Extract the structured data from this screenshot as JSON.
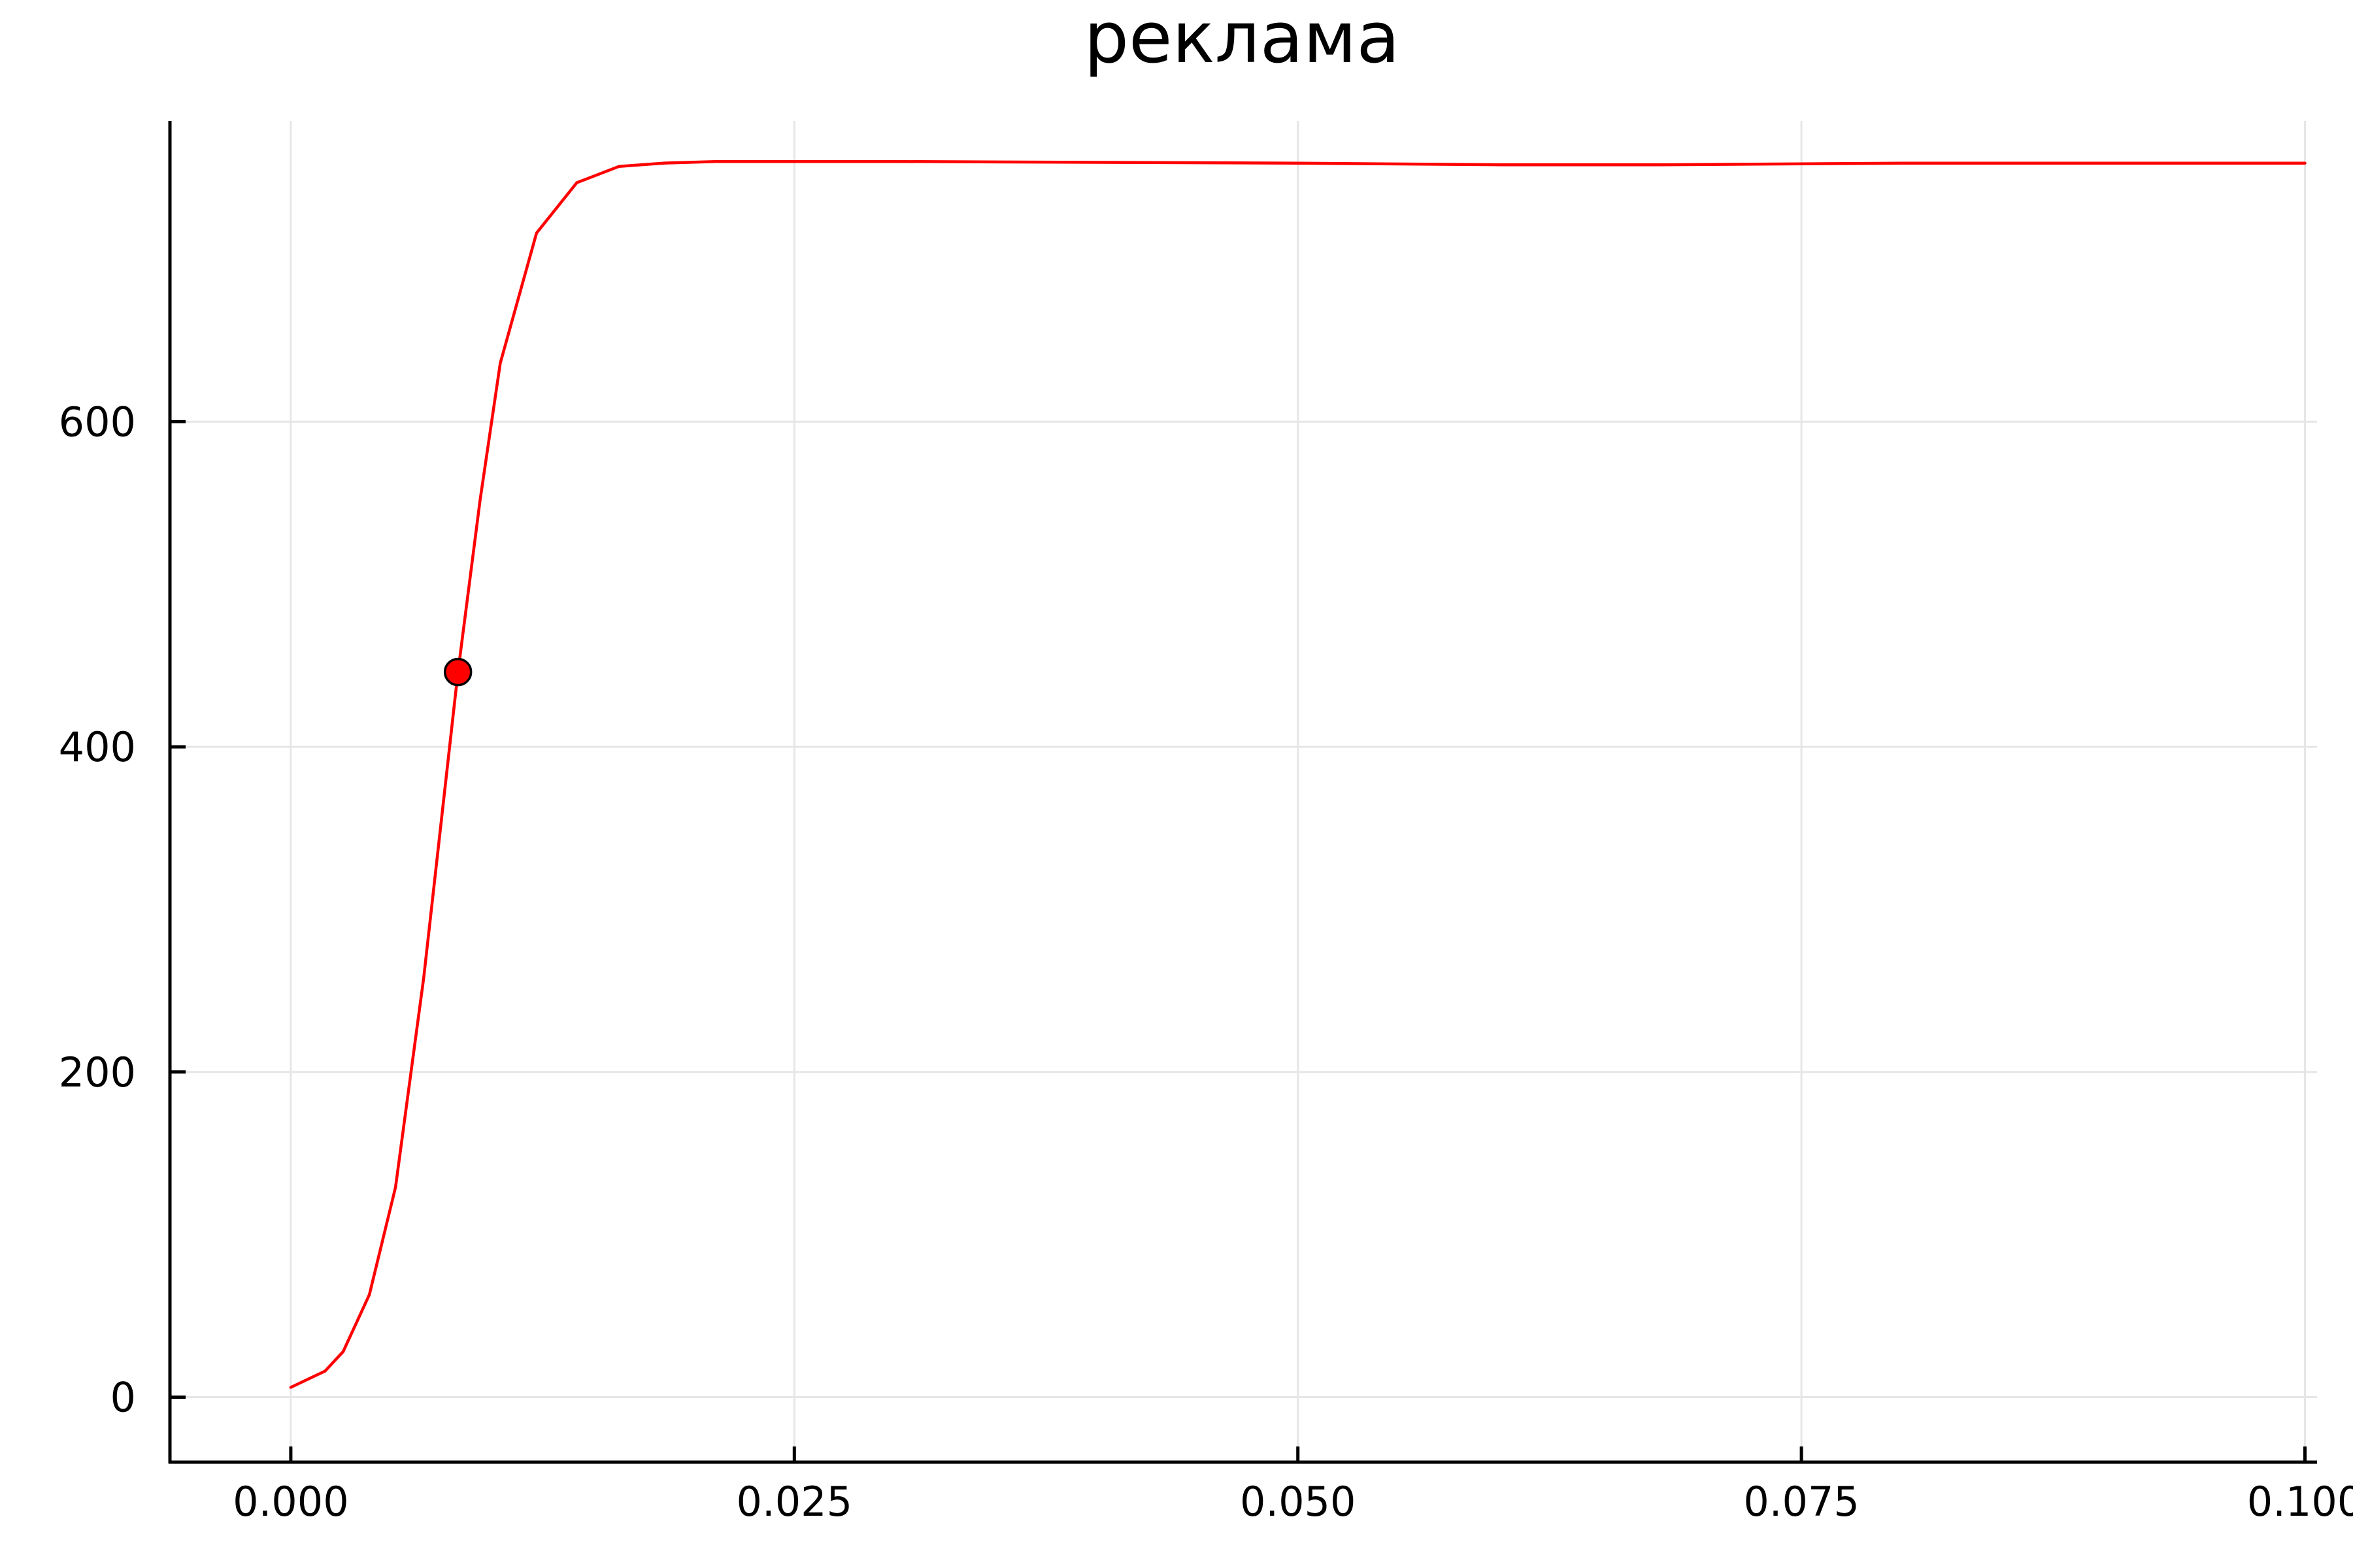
{
  "chart_data": {
    "type": "line",
    "title": "реклама",
    "xlabel": "",
    "ylabel": "",
    "xlim": [
      -0.006,
      0.1006
    ],
    "ylim": [
      -40,
      785
    ],
    "grid": true,
    "legend": "none",
    "xticks": [
      {
        "value": 0.0,
        "label": "0.000"
      },
      {
        "value": 0.025,
        "label": "0.025"
      },
      {
        "value": 0.05,
        "label": "0.050"
      },
      {
        "value": 0.075,
        "label": "0.075"
      },
      {
        "value": 0.1,
        "label": "0.100"
      }
    ],
    "yticks": [
      {
        "value": 0,
        "label": "0"
      },
      {
        "value": 200,
        "label": "200"
      },
      {
        "value": 400,
        "label": "400"
      },
      {
        "value": 600,
        "label": "600"
      }
    ],
    "series": [
      {
        "color": "#ff0000",
        "x": [
          0.0,
          0.0017,
          0.0026,
          0.0039,
          0.0052,
          0.0066,
          0.0083,
          0.0094,
          0.0104,
          0.0122,
          0.0142,
          0.0163,
          0.0185,
          0.0211,
          0.03,
          0.05,
          0.06,
          0.068,
          0.08,
          0.1
        ],
        "y": [
          6,
          16,
          28,
          63,
          129,
          258,
          446,
          552,
          636,
          716,
          747,
          757,
          759,
          760,
          760,
          759,
          758,
          758,
          759,
          759
        ]
      }
    ],
    "highlight_point": {
      "x": 0.0083,
      "y": 446,
      "color": "#ff0000"
    }
  }
}
